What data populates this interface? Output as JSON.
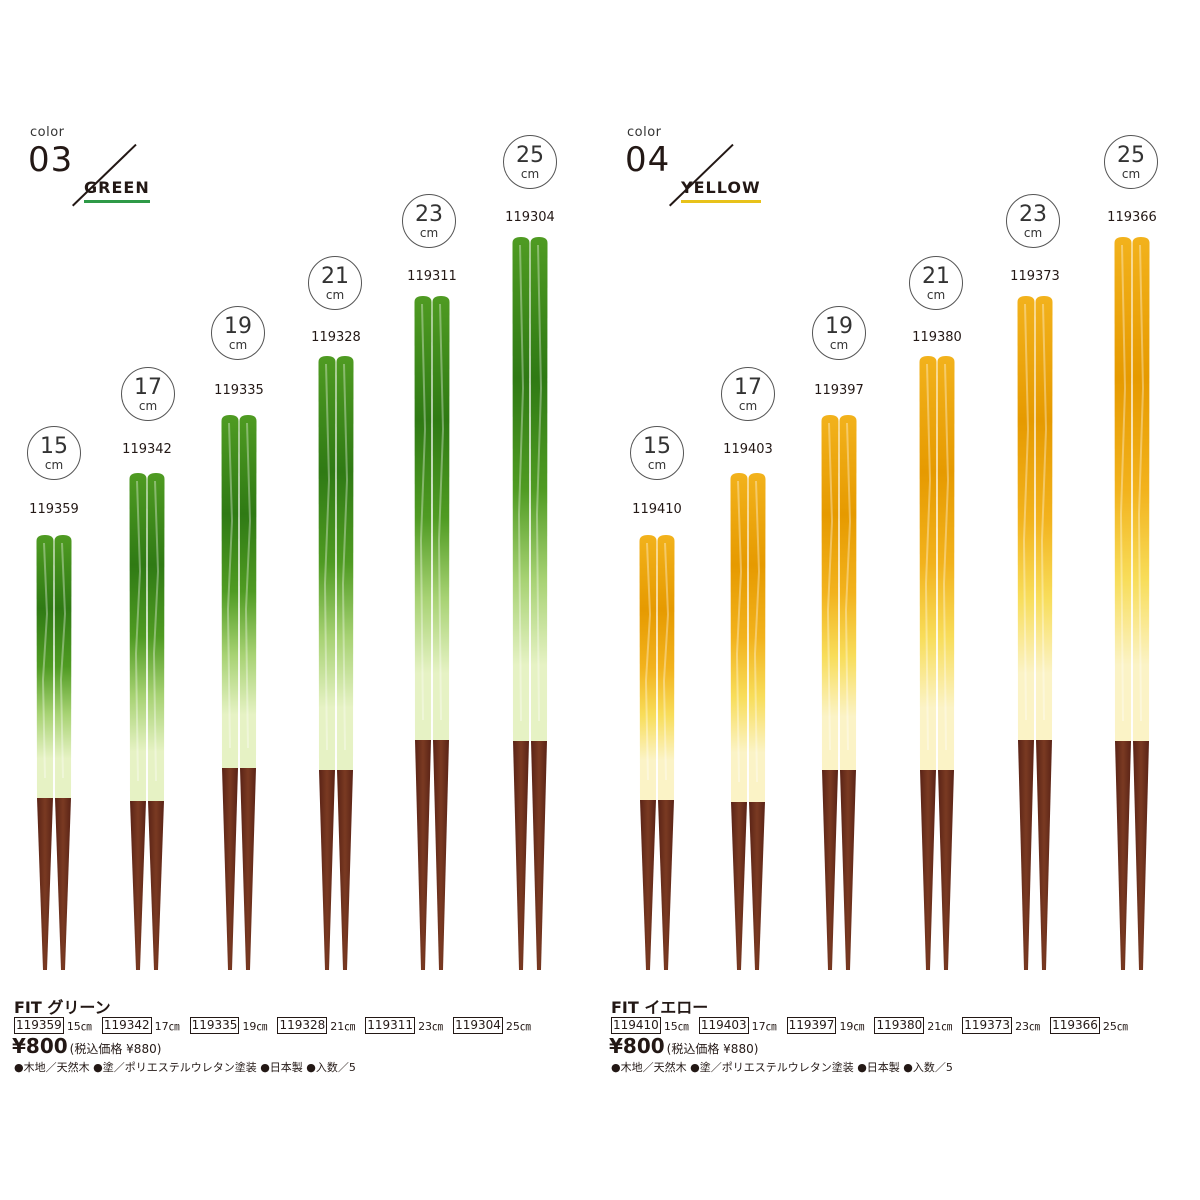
{
  "green": {
    "color_label": "color",
    "color_number": "03",
    "color_name": "GREEN",
    "accent": "#2e9a47",
    "tip": "#4f9b22",
    "tip_dark": "#2f7a14",
    "mid": "#a7d273",
    "light": "#e6f2c4",
    "product_title": "FIT グリーン",
    "price": "¥800",
    "tax_note": "(税込価格 ¥880)",
    "spec": "●木地／天然木 ●塗／ポリエステルウレタン塗装 ●日本製 ●入数／5",
    "items": [
      {
        "size": "15",
        "unit": "cm",
        "code": "119359",
        "len": "15㎝"
      },
      {
        "size": "17",
        "unit": "cm",
        "code": "119342",
        "len": "17㎝"
      },
      {
        "size": "19",
        "unit": "cm",
        "code": "119335",
        "len": "19㎝"
      },
      {
        "size": "21",
        "unit": "cm",
        "code": "119328",
        "len": "21㎝"
      },
      {
        "size": "23",
        "unit": "cm",
        "code": "119311",
        "len": "23㎝"
      },
      {
        "size": "25",
        "unit": "cm",
        "code": "119304",
        "len": "25㎝"
      }
    ]
  },
  "yellow": {
    "color_label": "color",
    "color_number": "04",
    "color_name": "YELLOW",
    "accent": "#e8c21a",
    "tip": "#f2b21c",
    "tip_dark": "#e69a00",
    "mid": "#f8dd5a",
    "light": "#fbf3c6",
    "product_title": "FIT イエロー",
    "price": "¥800",
    "tax_note": "(税込価格 ¥880)",
    "spec": "●木地／天然木 ●塗／ポリエステルウレタン塗装 ●日本製 ●入数／5",
    "items": [
      {
        "size": "15",
        "unit": "cm",
        "code": "119410",
        "len": "15㎝"
      },
      {
        "size": "17",
        "unit": "cm",
        "code": "119403",
        "len": "17㎝"
      },
      {
        "size": "19",
        "unit": "cm",
        "code": "119397",
        "len": "19㎝"
      },
      {
        "size": "21",
        "unit": "cm",
        "code": "119380",
        "len": "21㎝"
      },
      {
        "size": "23",
        "unit": "cm",
        "code": "119373",
        "len": "23㎝"
      },
      {
        "size": "25",
        "unit": "cm",
        "code": "119366",
        "len": "25㎝"
      }
    ]
  },
  "wood": "#5a2316",
  "wood_light": "#7a3a22"
}
